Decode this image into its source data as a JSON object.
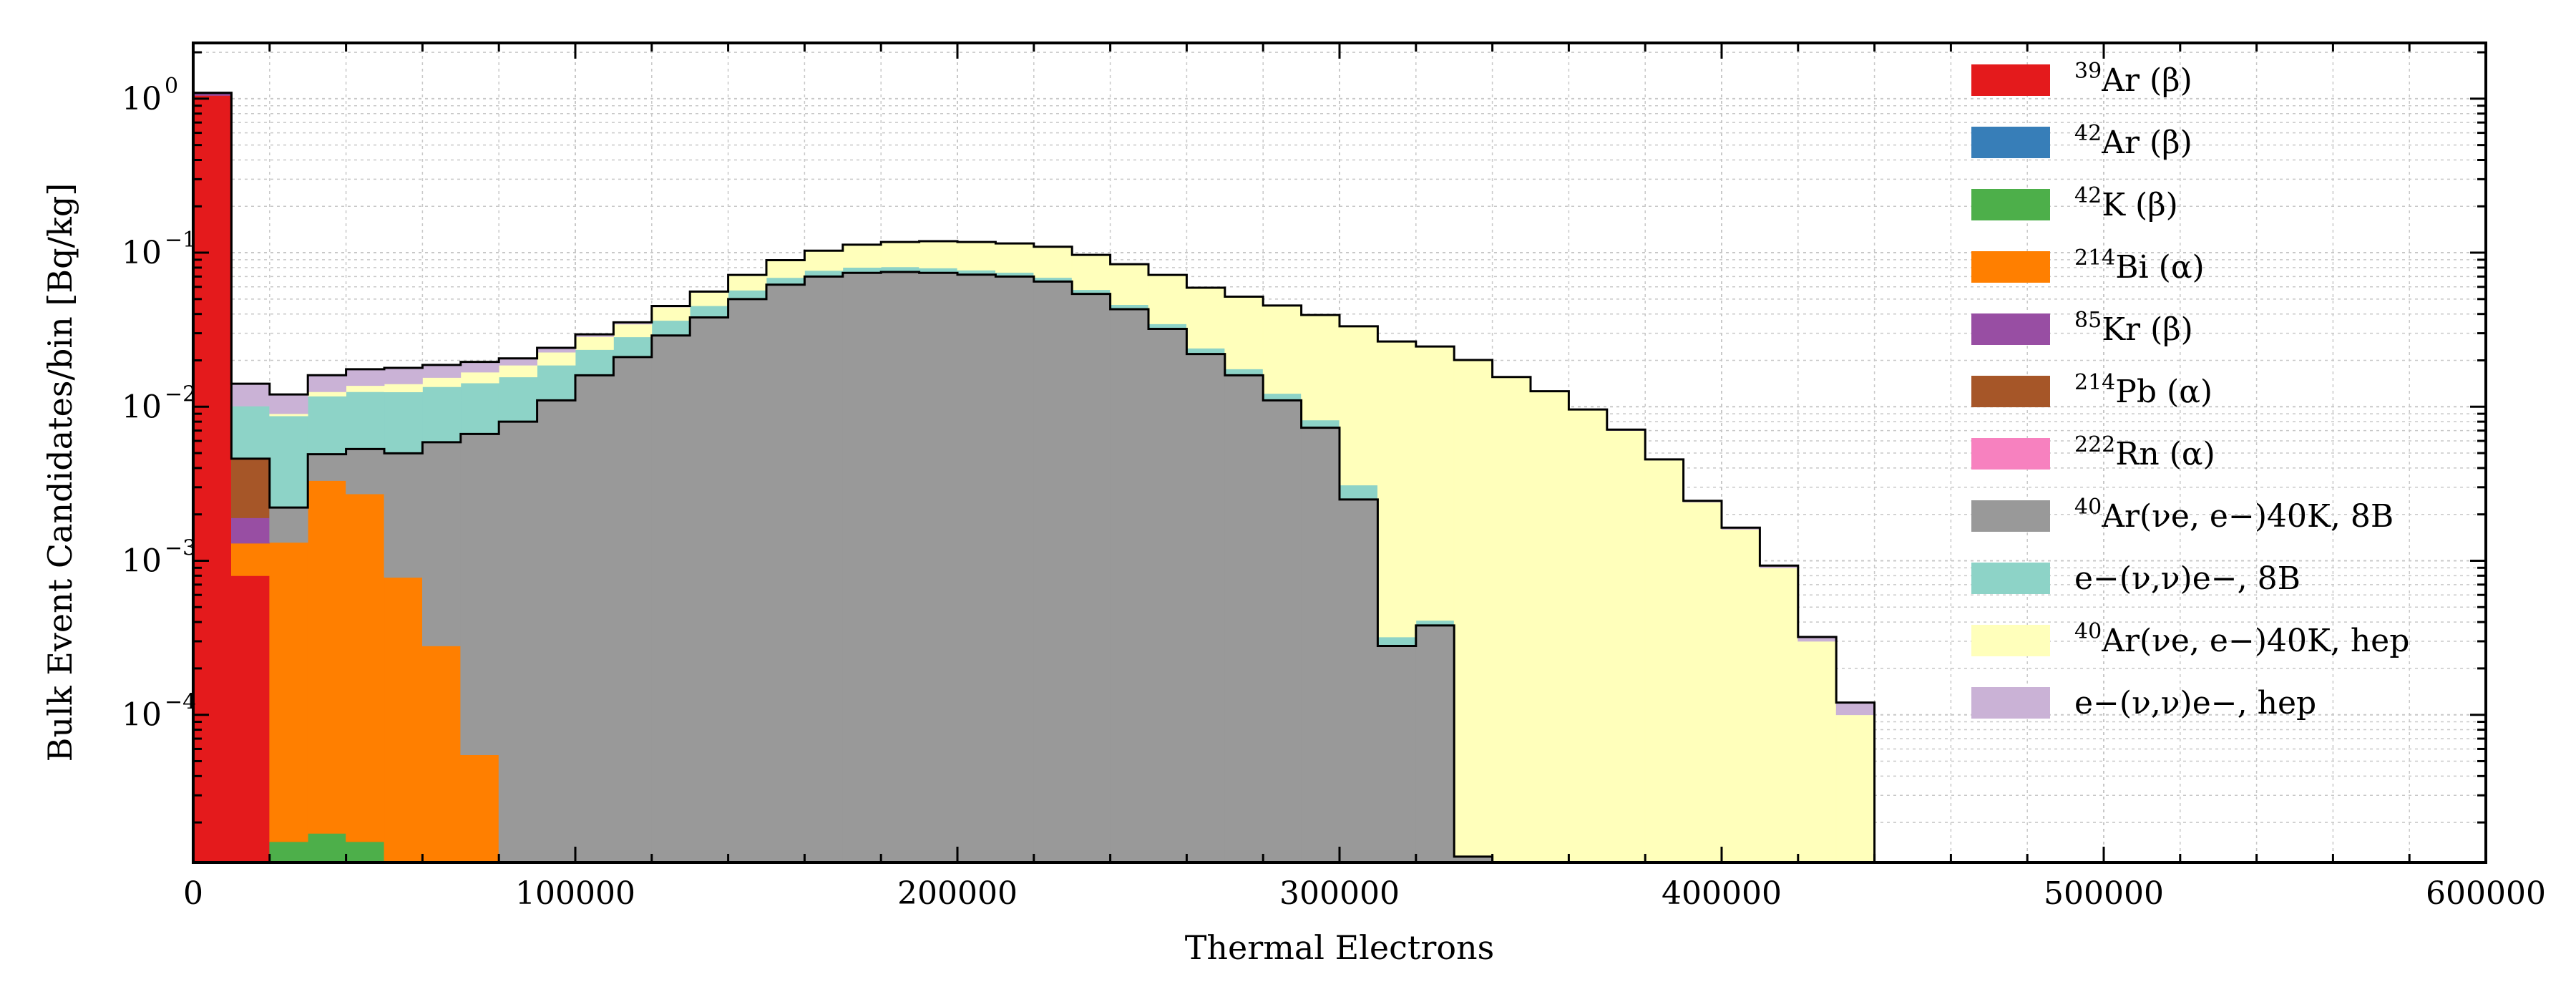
{
  "chart_data": {
    "type": "area",
    "title": "",
    "xlabel": "Thermal Electrons",
    "ylabel": "Bulk Event Candidates/bin [Bq/kg]",
    "xlim": [
      0,
      600000
    ],
    "ylim": [
      1.1e-05,
      2.3
    ],
    "yscale": "log",
    "grid": true,
    "stacked": true,
    "legend_position": "top-right",
    "bin_width": 10000,
    "x_ticks": [
      {
        "value": 0,
        "label": "0"
      },
      {
        "value": 100000,
        "label": "100000"
      },
      {
        "value": 200000,
        "label": "200000"
      },
      {
        "value": 300000,
        "label": "300000"
      },
      {
        "value": 400000,
        "label": "400000"
      },
      {
        "value": 500000,
        "label": "500000"
      },
      {
        "value": 600000,
        "label": "600000"
      }
    ],
    "y_ticks": [
      {
        "value": 0.0001,
        "base": "10",
        "exp": "−4"
      },
      {
        "value": 0.001,
        "base": "10",
        "exp": "−3"
      },
      {
        "value": 0.01,
        "base": "10",
        "exp": "−2"
      },
      {
        "value": 0.1,
        "base": "10",
        "exp": "−1"
      },
      {
        "value": 1,
        "base": "10",
        "exp": "0"
      }
    ],
    "bin_starts": [
      0,
      10000,
      20000,
      30000,
      40000,
      50000,
      60000,
      70000,
      80000,
      90000,
      100000,
      110000,
      120000,
      130000,
      140000,
      150000,
      160000,
      170000,
      180000,
      190000,
      200000,
      210000,
      220000,
      230000,
      240000,
      250000,
      260000,
      270000,
      280000,
      290000,
      300000,
      310000,
      320000,
      330000,
      340000,
      350000,
      360000,
      370000,
      380000,
      390000,
      400000,
      410000,
      420000,
      430000
    ],
    "series": [
      {
        "key": "ar39",
        "color": "#e41a1c",
        "values": [
          1.05,
          0.0008,
          0,
          0,
          0,
          0,
          0,
          0,
          0,
          0,
          0,
          0,
          0,
          0,
          0,
          0,
          0,
          0,
          0,
          0,
          0,
          0,
          0,
          0,
          0,
          0,
          0,
          0,
          0,
          0,
          0,
          0,
          0,
          0,
          0,
          0,
          0,
          0,
          0,
          0,
          0,
          0,
          0,
          0
        ]
      },
      {
        "key": "ar42",
        "color": "#377eb8",
        "values": [
          0,
          0,
          0,
          0,
          0,
          0,
          0,
          0,
          0,
          0,
          0,
          0,
          0,
          0,
          0,
          0,
          0,
          0,
          0,
          0,
          0,
          0,
          0,
          0,
          0,
          0,
          0,
          0,
          0,
          0,
          0,
          0,
          0,
          0,
          0,
          0,
          0,
          0,
          0,
          0,
          0,
          0,
          0,
          0
        ]
      },
      {
        "key": "k42",
        "color": "#4daf4a",
        "values": [
          0,
          0,
          1.5e-05,
          1.7e-05,
          1.5e-05,
          0,
          0,
          0,
          0,
          0,
          0,
          0,
          0,
          0,
          0,
          0,
          0,
          0,
          0,
          0,
          0,
          0,
          0,
          0,
          0,
          0,
          0,
          0,
          0,
          0,
          0,
          0,
          0,
          0,
          0,
          0,
          0,
          0,
          0,
          0,
          0,
          0,
          0,
          0
        ]
      },
      {
        "key": "bi214",
        "color": "#ff7f00",
        "values": [
          0,
          0.0005,
          0.0013,
          0.0033,
          0.0027,
          0.00078,
          0.00028,
          5.5e-05,
          0,
          0,
          0,
          0,
          0,
          0,
          0,
          0,
          0,
          0,
          0,
          0,
          0,
          0,
          0,
          0,
          0,
          0,
          0,
          0,
          0,
          0,
          0,
          0,
          0,
          0,
          0,
          0,
          0,
          0,
          0,
          0,
          0,
          0,
          0,
          0
        ]
      },
      {
        "key": "kr85",
        "color": "#984ea3",
        "values": [
          0.04,
          0.0006,
          0,
          0,
          0,
          0,
          0,
          0,
          0,
          0,
          0,
          0,
          0,
          0,
          0,
          0,
          0,
          0,
          0,
          0,
          0,
          0,
          0,
          0,
          0,
          0,
          0,
          0,
          0,
          0,
          0,
          0,
          0,
          0,
          0,
          0,
          0,
          0,
          0,
          0,
          0,
          0,
          0,
          0
        ]
      },
      {
        "key": "pb214",
        "color": "#a65628",
        "values": [
          0,
          0.0027,
          0,
          0,
          0,
          0,
          0,
          0,
          0,
          0,
          0,
          0,
          0,
          0,
          0,
          0,
          0,
          0,
          0,
          0,
          0,
          0,
          0,
          0,
          0,
          0,
          0,
          0,
          0,
          0,
          0,
          0,
          0,
          0,
          0,
          0,
          0,
          0,
          0,
          0,
          0,
          0,
          0,
          0
        ]
      },
      {
        "key": "rn222",
        "color": "#f781bf",
        "values": [
          0,
          0,
          0,
          0,
          0,
          0,
          0,
          0,
          0,
          0,
          0,
          0,
          0,
          0,
          0,
          0,
          0,
          0,
          0,
          0,
          0,
          0,
          0,
          0,
          0,
          0,
          0,
          0,
          0,
          0,
          0,
          0,
          0,
          0,
          0,
          0,
          0,
          0,
          0,
          0,
          0,
          0,
          0,
          0
        ]
      },
      {
        "key": "cc8b",
        "color": "#999999",
        "values": [
          0,
          0,
          0.0009,
          0.0016,
          0.0026,
          0.0042,
          0.0056,
          0.0066,
          0.008,
          0.011,
          0.016,
          0.021,
          0.029,
          0.038,
          0.05,
          0.062,
          0.07,
          0.074,
          0.075,
          0.074,
          0.072,
          0.07,
          0.065,
          0.054,
          0.043,
          0.032,
          0.022,
          0.016,
          0.011,
          0.0073,
          0.0025,
          0.00028,
          0.00038,
          1.2e-05,
          0,
          0,
          0,
          0,
          0,
          0,
          0,
          0,
          0,
          0
        ]
      },
      {
        "key": "es8b",
        "color": "#8dd3c7",
        "values": [
          0,
          0.0055,
          0.0065,
          0.0068,
          0.0072,
          0.0075,
          0.0076,
          0.0076,
          0.0076,
          0.0076,
          0.0075,
          0.0074,
          0.0073,
          0.0072,
          0.0071,
          0.0069,
          0.0066,
          0.0063,
          0.0059,
          0.0055,
          0.005,
          0.0045,
          0.004,
          0.0035,
          0.003,
          0.0025,
          0.002,
          0.0016,
          0.0012,
          0.0009,
          0.0006,
          4e-05,
          3e-05,
          0,
          0,
          0,
          0,
          0,
          0,
          0,
          0,
          0,
          0,
          0
        ]
      },
      {
        "key": "cchep",
        "color": "#ffffbb",
        "values": [
          0,
          0,
          0.0003,
          0.0008,
          0.0012,
          0.0016,
          0.002,
          0.0025,
          0.003,
          0.004,
          0.005,
          0.006,
          0.008,
          0.01,
          0.014,
          0.02,
          0.026,
          0.032,
          0.036,
          0.039,
          0.04,
          0.04,
          0.04,
          0.039,
          0.038,
          0.037,
          0.035,
          0.034,
          0.033,
          0.031,
          0.03,
          0.026,
          0.024,
          0.02,
          0.0155,
          0.0125,
          0.0095,
          0.007,
          0.0045,
          0.0024,
          0.0016,
          0.0009,
          0.0003,
          0.0001
        ]
      },
      {
        "key": "eshep",
        "color": "#cab2d6",
        "values": [
          0,
          0.004,
          0.003,
          0.0035,
          0.0038,
          0.0038,
          0.0032,
          0.0028,
          0.002,
          0.0015,
          0.001,
          0.0009,
          0.0008,
          0.0007,
          0.0006,
          0.0005,
          0.0004,
          0.0004,
          0.0004,
          0.0003,
          0.0003,
          0.0003,
          0.0003,
          0.0003,
          0.0002,
          0.0002,
          0.0002,
          0.0002,
          0.0002,
          0.0002,
          0.0002,
          0.0002,
          0.0002,
          0.0001,
          0.0001,
          0.0001,
          0.0001,
          0.0001,
          5e-05,
          5e-05,
          4e-05,
          3e-05,
          2e-05,
          2e-05
        ]
      }
    ],
    "legend": [
      {
        "key": "ar39",
        "color": "#e41a1c",
        "sup": "39",
        "text": "Ar (β)"
      },
      {
        "key": "ar42",
        "color": "#377eb8",
        "sup": "42",
        "text": "Ar (β)"
      },
      {
        "key": "k42",
        "color": "#4daf4a",
        "sup": "42",
        "text": "K (β)"
      },
      {
        "key": "bi214",
        "color": "#ff7f00",
        "sup": "214",
        "text": "Bi (α)"
      },
      {
        "key": "kr85",
        "color": "#984ea3",
        "sup": "85",
        "text": "Kr (β)"
      },
      {
        "key": "pb214",
        "color": "#a65628",
        "sup": "214",
        "text": "Pb (α)"
      },
      {
        "key": "rn222",
        "color": "#f781bf",
        "sup": "222",
        "text": "Rn (α)"
      },
      {
        "key": "cc8b",
        "color": "#999999",
        "sup": "40",
        "text": "Ar(νe, e−)40K, 8B"
      },
      {
        "key": "es8b",
        "color": "#8dd3c7",
        "sup": "",
        "text": "e−(ν,ν)e−, 8B"
      },
      {
        "key": "cchep",
        "color": "#ffffbb",
        "sup": "40",
        "text": "Ar(νe, e−)40K, hep"
      },
      {
        "key": "eshep",
        "color": "#cab2d6",
        "sup": "",
        "text": "e−(ν,ν)e−, hep"
      }
    ]
  }
}
